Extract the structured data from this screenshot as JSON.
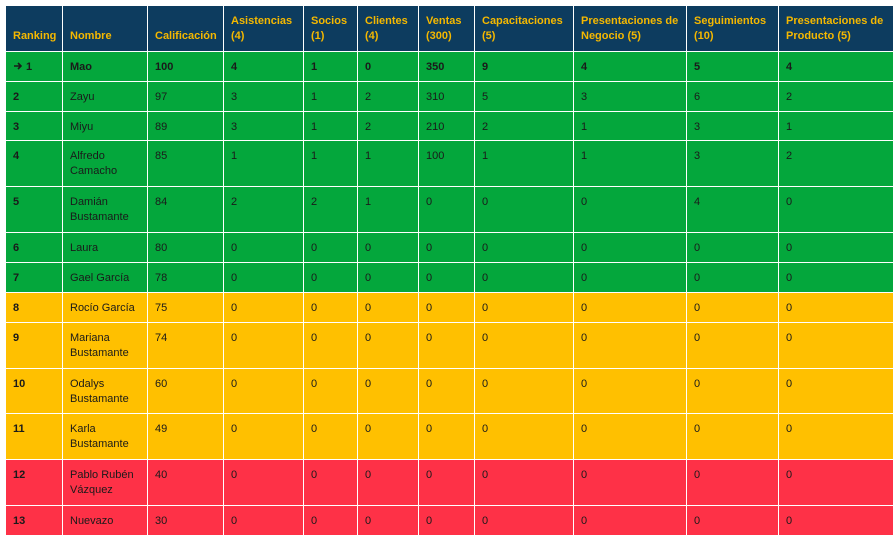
{
  "table": {
    "header": [
      "Ranking",
      "Nombre",
      "Calificación",
      "Asistencias (4)",
      "Socios (1)",
      "Clientes (4)",
      "Ventas (300)",
      "Capacitaciones (5)",
      "Presentaciones de Negocio (5)",
      "Seguimientos (10)",
      "Presentaciones de Producto (5)"
    ],
    "rows": [
      {
        "color": "#04a73c",
        "cells": [
          1,
          "Mao",
          100,
          4,
          1,
          0,
          350,
          9,
          4,
          5,
          4
        ]
      },
      {
        "color": "#04a73c",
        "cells": [
          2,
          "Zayu",
          97,
          3,
          1,
          2,
          310,
          5,
          3,
          6,
          2
        ]
      },
      {
        "color": "#04a73c",
        "cells": [
          3,
          "Miyu",
          89,
          3,
          1,
          2,
          210,
          2,
          1,
          3,
          1
        ]
      },
      {
        "color": "#04a73c",
        "cells": [
          4,
          "Alfredo Camacho",
          85,
          1,
          1,
          1,
          100,
          1,
          1,
          3,
          2
        ]
      },
      {
        "color": "#04a73c",
        "cells": [
          5,
          "Damián Bustamante",
          84,
          2,
          2,
          1,
          0,
          0,
          0,
          4,
          0
        ]
      },
      {
        "color": "#04a73c",
        "cells": [
          6,
          "Laura",
          80,
          0,
          0,
          0,
          0,
          0,
          0,
          0,
          0
        ]
      },
      {
        "color": "#04a73c",
        "cells": [
          7,
          "Gael García",
          78,
          0,
          0,
          0,
          0,
          0,
          0,
          0,
          0
        ]
      },
      {
        "color": "#ffc000",
        "cells": [
          8,
          "Rocío García",
          75,
          0,
          0,
          0,
          0,
          0,
          0,
          0,
          0
        ]
      },
      {
        "color": "#ffc000",
        "cells": [
          9,
          "Mariana Bustamante",
          74,
          0,
          0,
          0,
          0,
          0,
          0,
          0,
          0
        ]
      },
      {
        "color": "#ffc000",
        "cells": [
          10,
          "Odalys Bustamante",
          60,
          0,
          0,
          0,
          0,
          0,
          0,
          0,
          0
        ]
      },
      {
        "color": "#ffc000",
        "cells": [
          11,
          "Karla Bustamante",
          49,
          0,
          0,
          0,
          0,
          0,
          0,
          0,
          0
        ]
      },
      {
        "color": "#fe3147",
        "cells": [
          12,
          "Pablo Rubén Vázquez",
          40,
          0,
          0,
          0,
          0,
          0,
          0,
          0,
          0
        ]
      },
      {
        "color": "#fe3147",
        "cells": [
          13,
          "Nuevazo",
          30,
          0,
          0,
          0,
          0,
          0,
          0,
          0,
          0
        ]
      }
    ]
  }
}
